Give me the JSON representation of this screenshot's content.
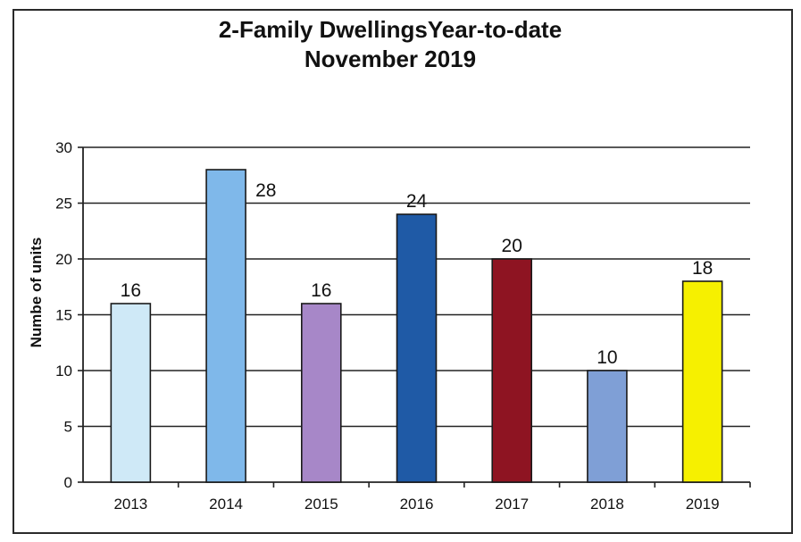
{
  "chart_data": {
    "type": "bar",
    "title": "2-Family DwellingsYear-to-date",
    "subtitle": "November 2019",
    "ylabel": "Numbe of units",
    "xlabel": "",
    "categories": [
      "2013",
      "2014",
      "2015",
      "2016",
      "2017",
      "2018",
      "2019"
    ],
    "values": [
      16,
      28,
      16,
      24,
      20,
      10,
      18
    ],
    "ylim": [
      0,
      30
    ],
    "yticks": [
      "0",
      "5",
      "10",
      "15",
      "20",
      "25",
      "30"
    ],
    "grid": true,
    "legend": "none",
    "colors": [
      "#cfe9f7",
      "#7fb8ea",
      "#a787c8",
      "#1f5aa6",
      "#8e1422",
      "#7f9fd6",
      "#f6f000"
    ]
  }
}
